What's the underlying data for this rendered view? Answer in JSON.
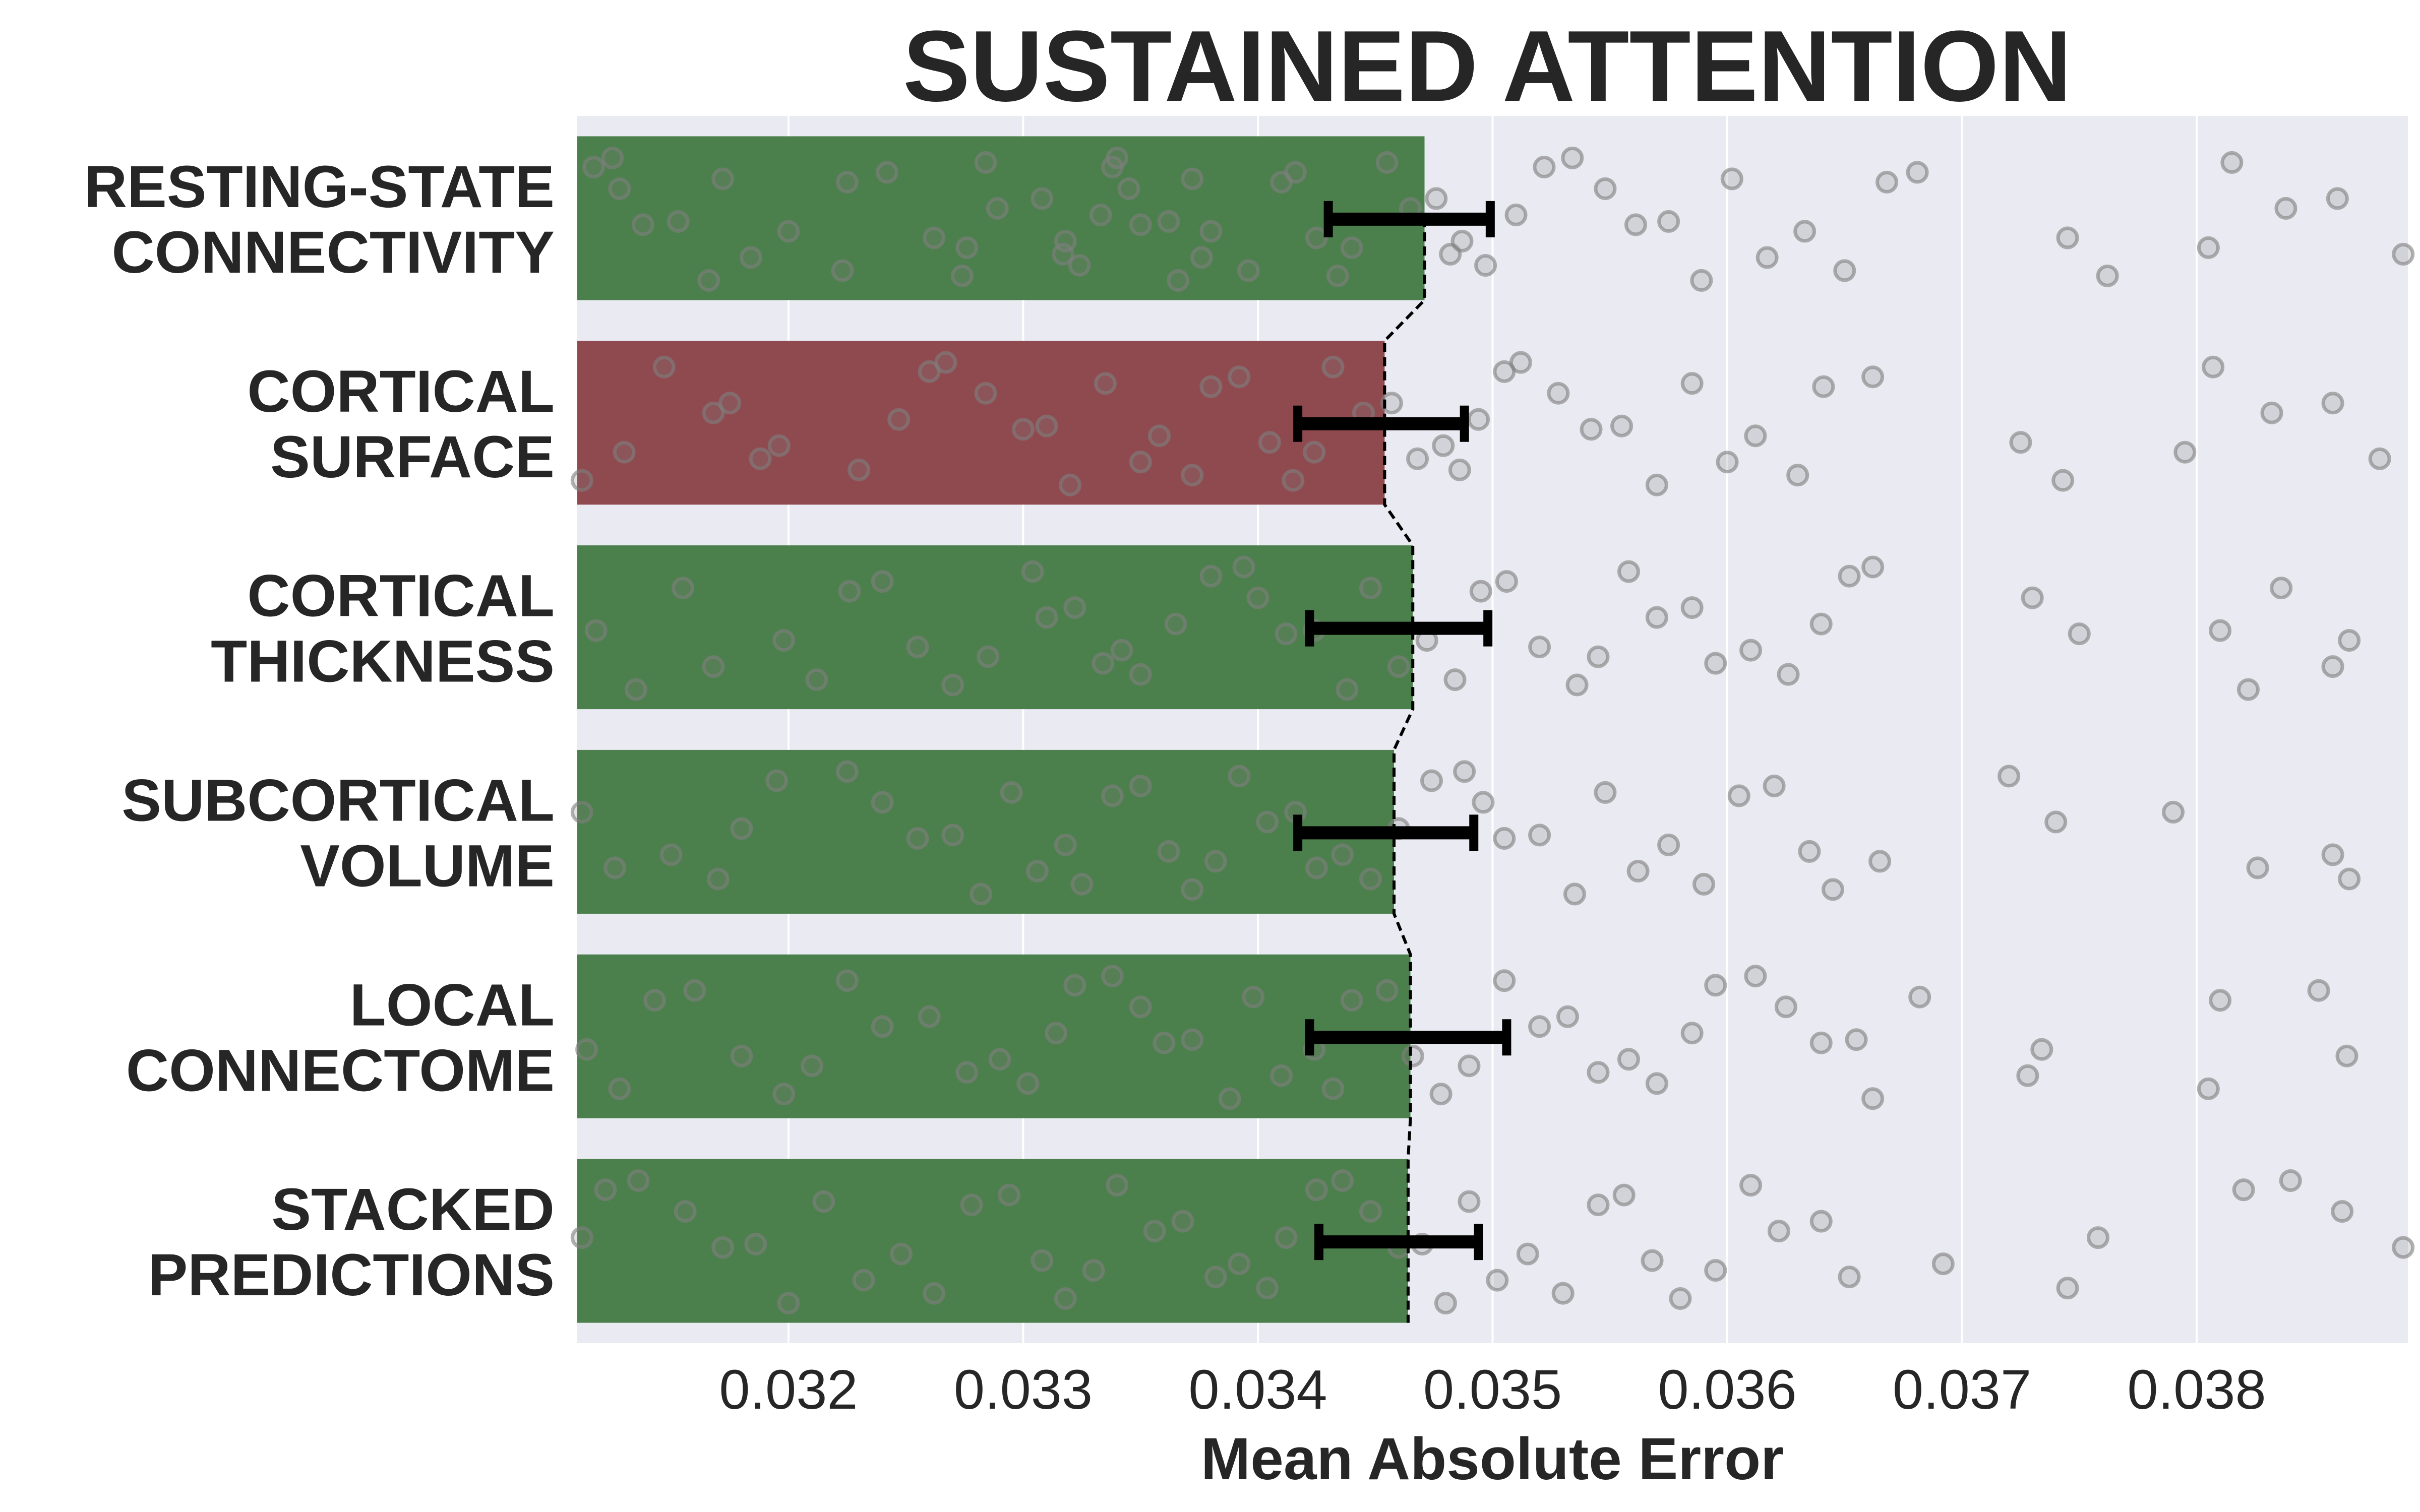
{
  "chart_data": {
    "type": "bar",
    "title": "SUSTAINED ATTENTION",
    "xlabel": "Mean Absolute Error",
    "ylabel": "",
    "orientation": "horizontal",
    "xlim": [
      0.0311,
      0.0389
    ],
    "xticks": [
      0.032,
      0.033,
      0.034,
      0.035,
      0.036,
      0.037,
      0.038
    ],
    "xtick_labels": [
      "0.032",
      "0.033",
      "0.034",
      "0.035",
      "0.036",
      "0.037",
      "0.038"
    ],
    "grid": true,
    "background": "#eaeaf2",
    "categories": [
      [
        "RESTING-STATE",
        "CONNECTIVITY"
      ],
      [
        "CORTICAL",
        "SURFACE"
      ],
      [
        "CORTICAL",
        "THICKNESS"
      ],
      [
        "SUBCORTICAL",
        "VOLUME"
      ],
      [
        "LOCAL",
        "CONNECTOME"
      ],
      [
        "STACKED",
        "PREDICTIONS"
      ]
    ],
    "values": [
      0.03471,
      0.03454,
      0.03466,
      0.03458,
      0.03465,
      0.03464
    ],
    "bar_colors": [
      "#4b7f4b",
      "#8f4a4f",
      "#4b7f4b",
      "#4b7f4b",
      "#4b7f4b",
      "#4b7f4b"
    ],
    "error_low": [
      0.0343,
      0.03417,
      0.03422,
      0.03417,
      0.03422,
      0.03426
    ],
    "error_high": [
      0.03499,
      0.03488,
      0.03498,
      0.03492,
      0.03506,
      0.03494
    ],
    "point_color": "#7f7f7f",
    "scatter_points": [
      [
        0.03117,
        0.03125,
        0.03128,
        0.03138,
        0.03153,
        0.03166,
        0.03172,
        0.03184,
        0.032,
        0.03223,
        0.03225,
        0.03242,
        0.03262,
        0.03274,
        0.03276,
        0.03284,
        0.03289,
        0.03308,
        0.03317,
        0.03318,
        0.03324,
        0.03333,
        0.03338,
        0.0334,
        0.03345,
        0.0335,
        0.03362,
        0.03366,
        0.03372,
        0.03376,
        0.0338,
        0.03396,
        0.0341,
        0.03416,
        0.03425,
        0.03434,
        0.0344,
        0.03455,
        0.03465,
        0.03476,
        0.03482,
        0.03487,
        0.03497,
        0.0351,
        0.03522,
        0.03534,
        0.03548,
        0.03561,
        0.03575,
        0.03589,
        0.03602,
        0.03617,
        0.03633,
        0.0365,
        0.03668,
        0.03681,
        0.03745,
        0.03762,
        0.03805,
        0.03815,
        0.03838,
        0.0386,
        0.03888
      ],
      [
        0.03112,
        0.0313,
        0.03147,
        0.03168,
        0.03175,
        0.03188,
        0.03196,
        0.0323,
        0.03247,
        0.0326,
        0.03267,
        0.03284,
        0.033,
        0.0331,
        0.0332,
        0.03335,
        0.0335,
        0.03358,
        0.03372,
        0.0338,
        0.03392,
        0.03405,
        0.03415,
        0.03424,
        0.03432,
        0.03445,
        0.03457,
        0.03468,
        0.03479,
        0.03486,
        0.03494,
        0.03505,
        0.03512,
        0.03528,
        0.03542,
        0.03555,
        0.0357,
        0.03585,
        0.036,
        0.03612,
        0.0363,
        0.03641,
        0.03662,
        0.03725,
        0.03743,
        0.03795,
        0.03807,
        0.03832,
        0.03858,
        0.03878
      ],
      [
        0.03118,
        0.03135,
        0.03155,
        0.03168,
        0.03198,
        0.03212,
        0.03226,
        0.0324,
        0.03255,
        0.0327,
        0.03285,
        0.03304,
        0.0331,
        0.03322,
        0.03334,
        0.03342,
        0.0335,
        0.03365,
        0.0338,
        0.03394,
        0.034,
        0.03412,
        0.03424,
        0.03438,
        0.03448,
        0.0346,
        0.03472,
        0.03484,
        0.03495,
        0.03506,
        0.0352,
        0.03536,
        0.03545,
        0.03558,
        0.0357,
        0.03585,
        0.03595,
        0.0361,
        0.03626,
        0.0364,
        0.03652,
        0.03662,
        0.0373,
        0.0375,
        0.0381,
        0.03822,
        0.03836,
        0.03858,
        0.03865
      ],
      [
        0.03112,
        0.03126,
        0.0315,
        0.0317,
        0.0318,
        0.03195,
        0.03225,
        0.0324,
        0.03255,
        0.0327,
        0.03282,
        0.03295,
        0.03306,
        0.03318,
        0.03325,
        0.03338,
        0.0335,
        0.03362,
        0.03372,
        0.03382,
        0.03392,
        0.03404,
        0.03416,
        0.03425,
        0.03436,
        0.03448,
        0.0346,
        0.03474,
        0.03488,
        0.03496,
        0.03505,
        0.0352,
        0.03535,
        0.03548,
        0.03562,
        0.03575,
        0.0359,
        0.03605,
        0.0362,
        0.03635,
        0.03645,
        0.03665,
        0.0372,
        0.0374,
        0.0379,
        0.03826,
        0.03858,
        0.03865
      ],
      [
        0.03114,
        0.03128,
        0.03143,
        0.0316,
        0.0318,
        0.03198,
        0.0321,
        0.03225,
        0.0324,
        0.0326,
        0.03276,
        0.0329,
        0.03302,
        0.03314,
        0.03322,
        0.03338,
        0.0335,
        0.0336,
        0.03372,
        0.03388,
        0.03398,
        0.0341,
        0.03424,
        0.03432,
        0.0344,
        0.03455,
        0.03466,
        0.03478,
        0.0349,
        0.03505,
        0.0352,
        0.03532,
        0.03545,
        0.03558,
        0.0357,
        0.03585,
        0.03595,
        0.03612,
        0.03625,
        0.0364,
        0.03655,
        0.03662,
        0.03682,
        0.03728,
        0.03734,
        0.03805,
        0.0381,
        0.03852,
        0.03864
      ],
      [
        0.03112,
        0.03122,
        0.03136,
        0.03156,
        0.03172,
        0.03186,
        0.032,
        0.03215,
        0.03232,
        0.03248,
        0.03262,
        0.03278,
        0.03294,
        0.03308,
        0.03318,
        0.0333,
        0.0334,
        0.03356,
        0.03368,
        0.03382,
        0.03392,
        0.03404,
        0.03412,
        0.03425,
        0.03436,
        0.03448,
        0.0346,
        0.0347,
        0.0348,
        0.0349,
        0.03502,
        0.03515,
        0.0353,
        0.03545,
        0.03556,
        0.03568,
        0.0358,
        0.03595,
        0.0361,
        0.03622,
        0.0364,
        0.03652,
        0.03692,
        0.03745,
        0.03758,
        0.0382,
        0.0384,
        0.03862,
        0.03888
      ]
    ]
  }
}
